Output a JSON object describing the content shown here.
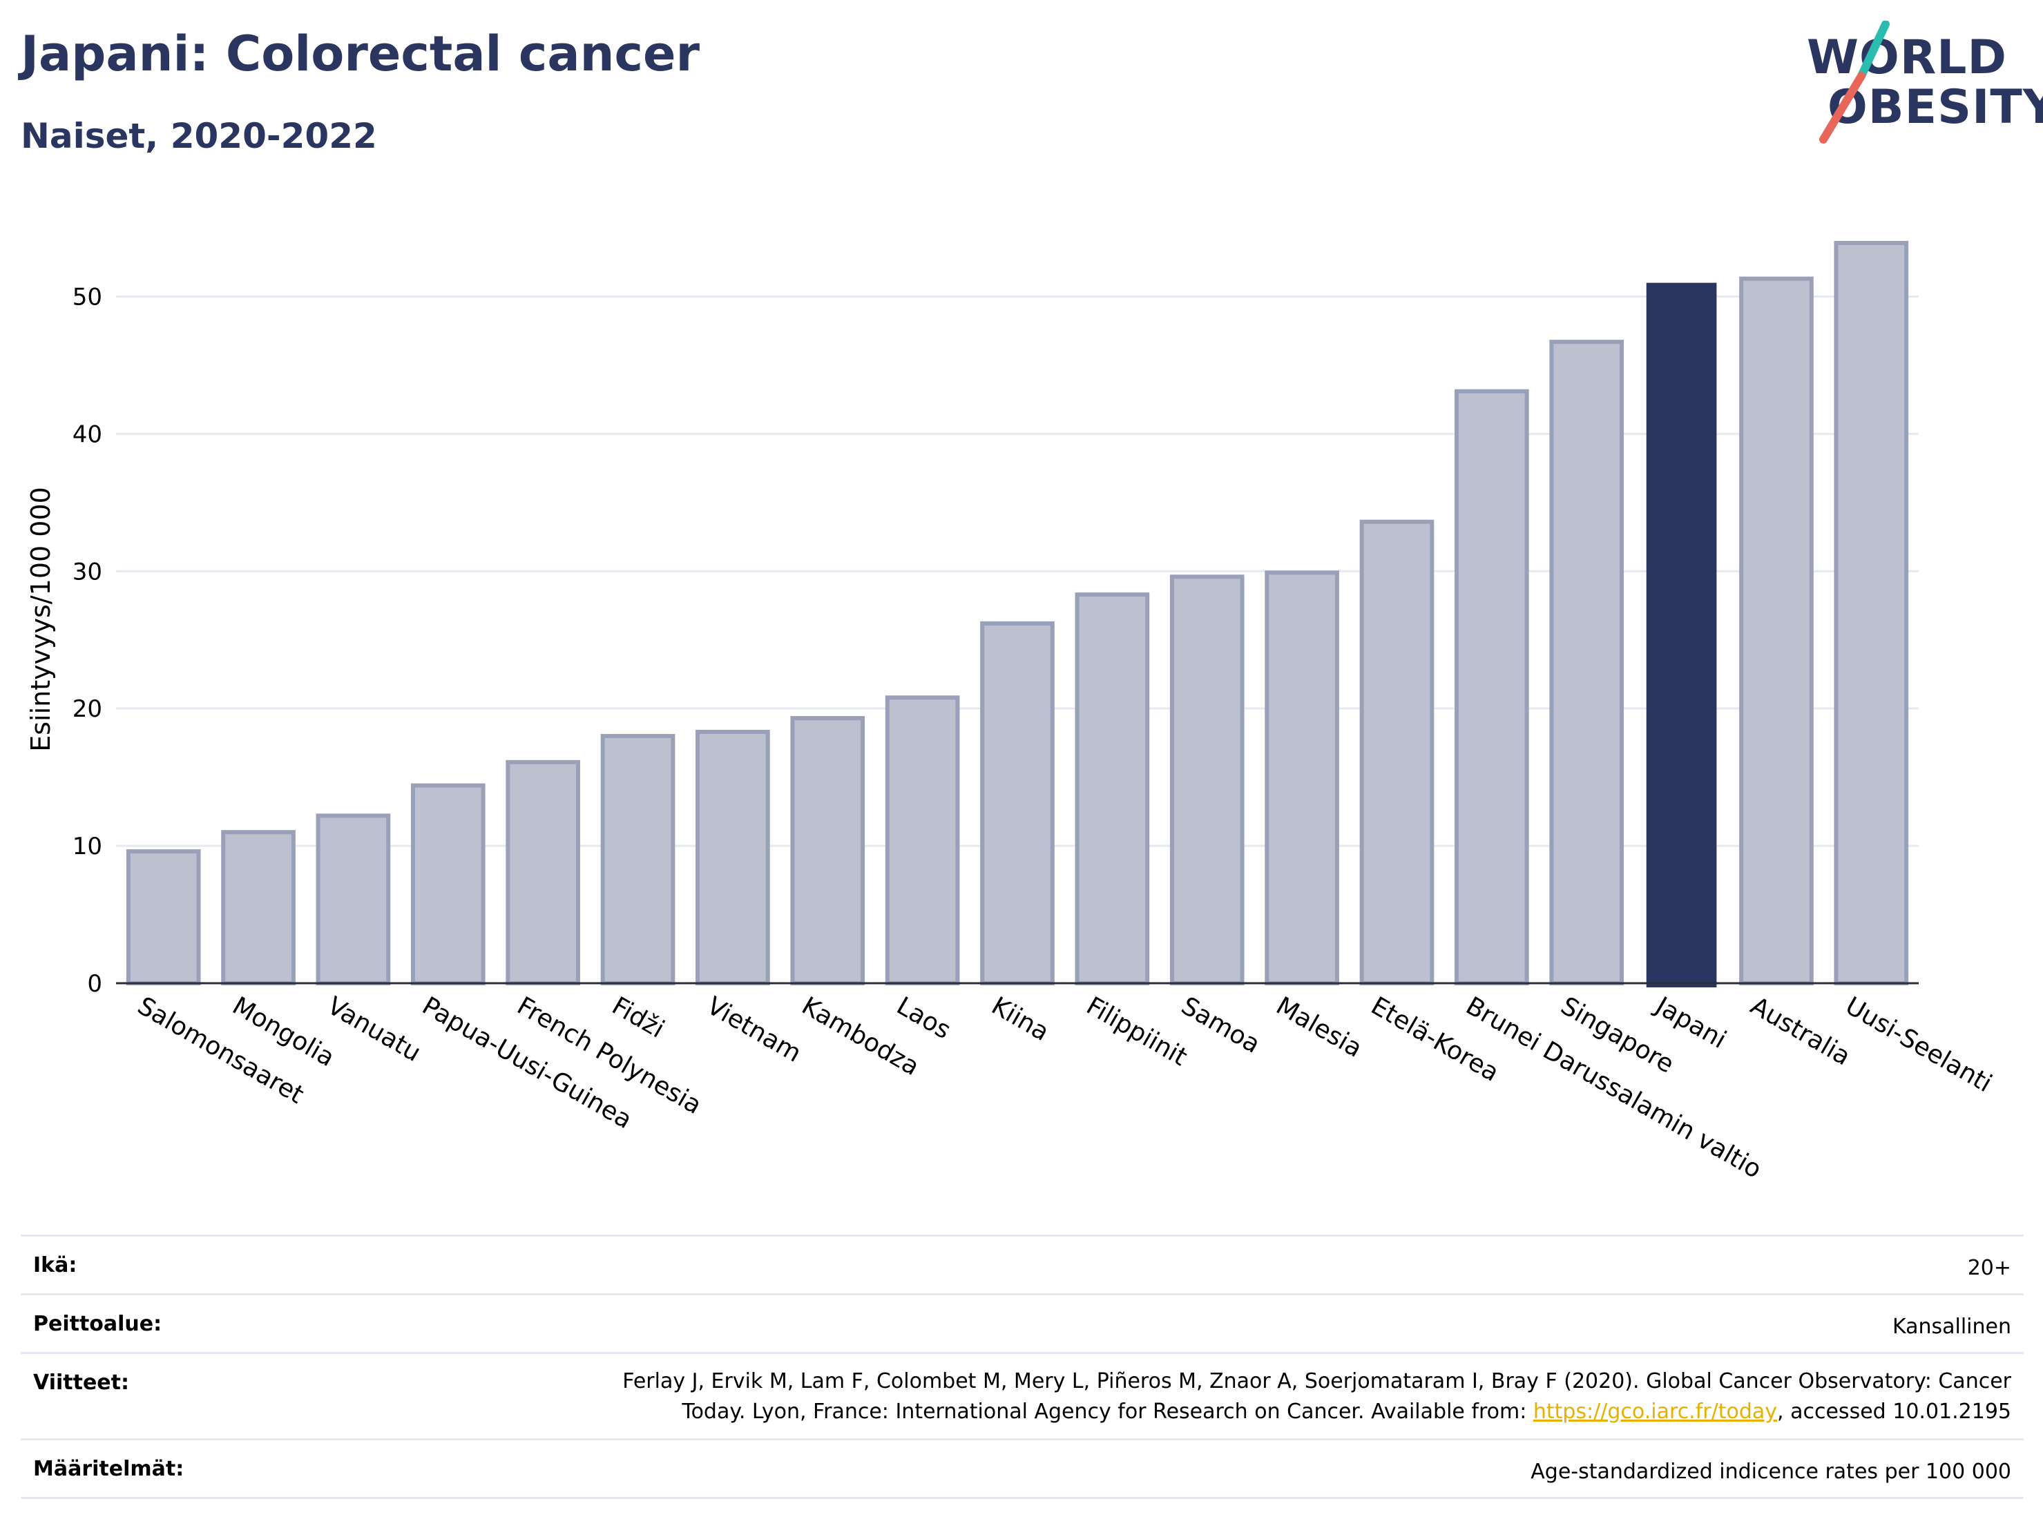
{
  "title": "Japani: Colorectal cancer",
  "subtitle": "Naiset, 2020-2022",
  "logo": {
    "line1": "WORLD",
    "line2": "OBESITY",
    "colors": {
      "text": "#2a3560",
      "slash_top": "#2bbcb0",
      "slash_bottom": "#e8665a"
    }
  },
  "chart_data": {
    "type": "bar",
    "ylabel": "Esiintyvyys/100 000",
    "ylim": [
      0,
      55
    ],
    "yticks": [
      "0",
      "10",
      "20",
      "30",
      "40",
      "50"
    ],
    "grid": true,
    "categories": [
      "Salomonsaaret",
      "Mongolia",
      "Vanuatu",
      "Papua-Uusi-Guinea",
      "French Polynesia",
      "Fidži",
      "Vietnam",
      "Kambodza",
      "Laos",
      "Kiina",
      "Filippiinit",
      "Samoa",
      "Malesia",
      "Etelä-Korea",
      "Brunei Darussalamin valtio",
      "Singapore",
      "Japani",
      "Australia",
      "Uusi-Seelanti"
    ],
    "values": [
      9.6,
      11.0,
      12.2,
      14.4,
      16.1,
      18.0,
      18.3,
      19.3,
      20.8,
      26.2,
      28.3,
      29.6,
      29.9,
      33.6,
      43.1,
      46.7,
      51.0,
      51.3,
      53.9
    ],
    "highlight": "Japani",
    "colors": {
      "bar": "#bcc0cf",
      "bar_edge": "#9aa0b8",
      "highlight": "#2a3560"
    }
  },
  "info": {
    "age": {
      "label": "Ikä:",
      "value": "20+"
    },
    "coverage": {
      "label": "Peittoalue:",
      "value": "Kansallinen"
    },
    "references": {
      "label": "Viitteet:",
      "line1": "Ferlay J, Ervik M, Lam F, Colombet M, Mery L, Piñeros M, Znaor A, Soerjomataram I, Bray F (2020). Global Cancer Observatory: Cancer",
      "line2_prefix": "Today. Lyon, France: International Agency for Research on Cancer. Available from: ",
      "link": "https://gco.iarc.fr/today",
      "line2_suffix": ", accessed 10.01.2195"
    },
    "definitions": {
      "label": "Määritelmät:",
      "value": "Age-standardized indicence rates per 100 000"
    }
  }
}
